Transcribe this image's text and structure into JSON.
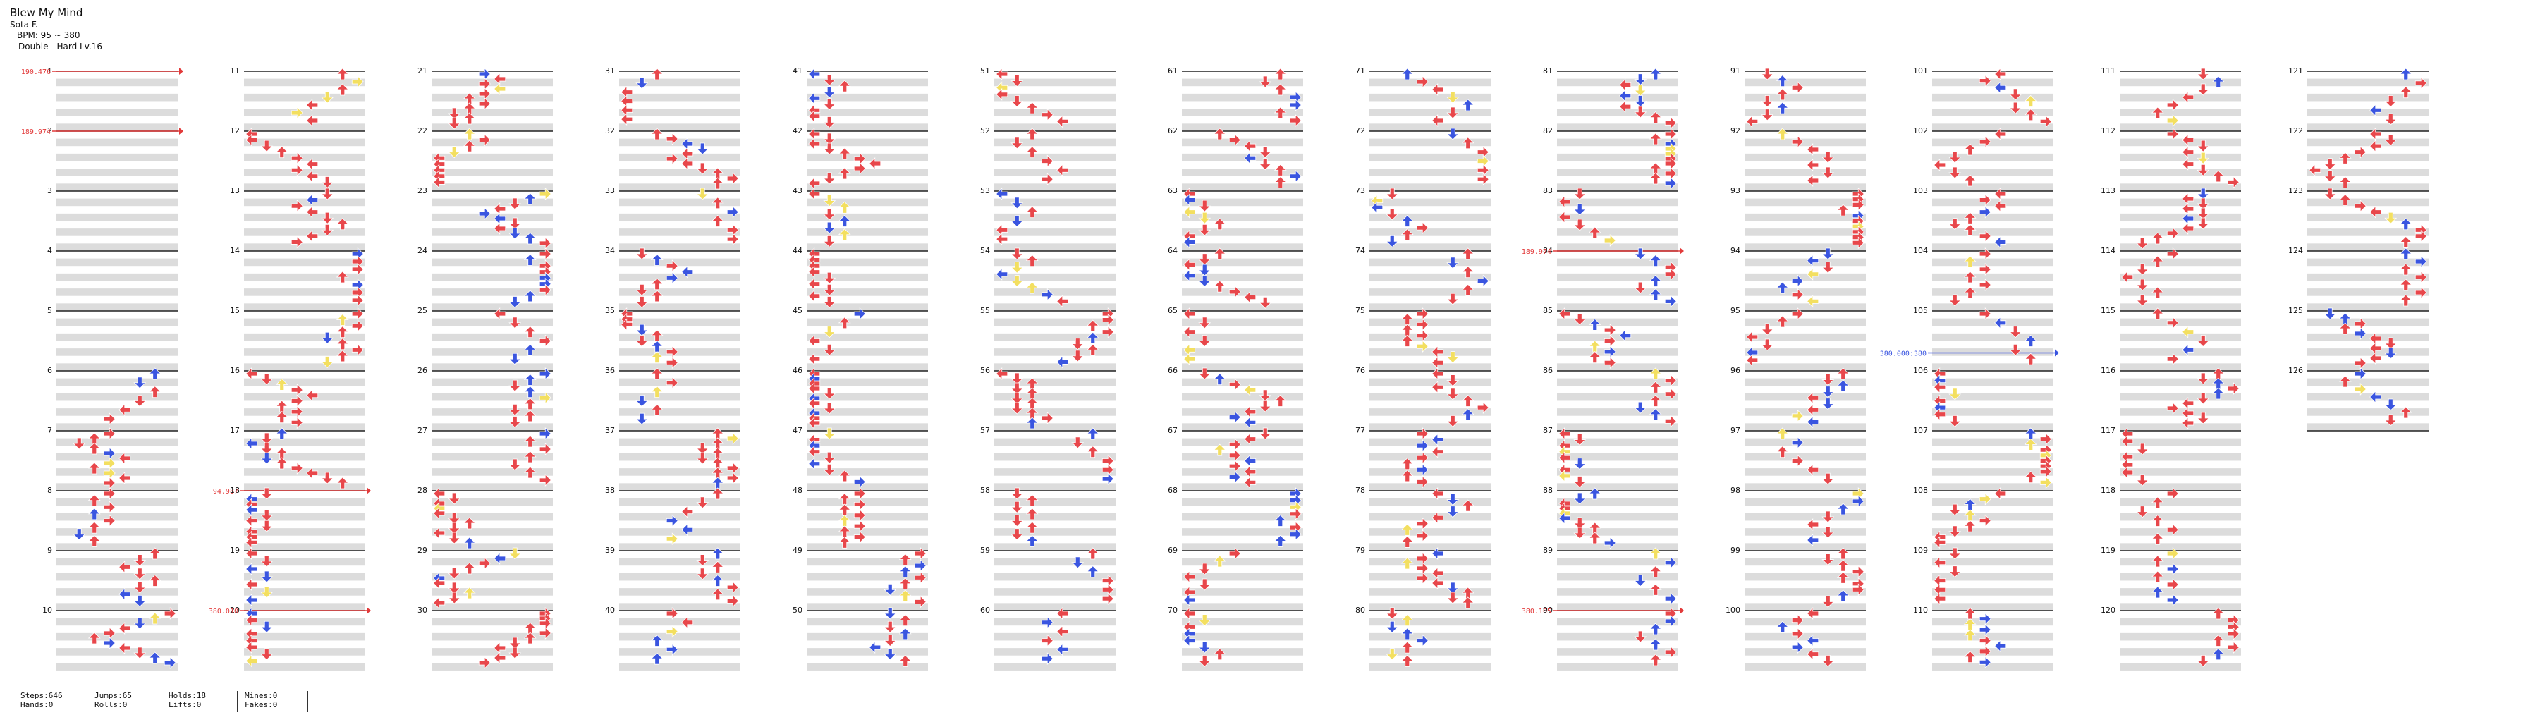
{
  "song": {
    "title": "Blew My Mind",
    "artist": "Sota F.",
    "bpm_text": "BPM: 95 ~ 380",
    "difficulty_text": "Double - Hard  Lv.16"
  },
  "measures": {
    "first": 1,
    "last": 126,
    "per_column": 10,
    "columns": 13
  },
  "bpm_changes": [
    {
      "measure": 1,
      "value": "190.476"
    },
    {
      "measure": 2,
      "value": "189.974"
    },
    {
      "measure": 18,
      "value": "94.987"
    },
    {
      "measure": 20,
      "value": "380.010"
    },
    {
      "measure": 84,
      "value": "189.974"
    },
    {
      "measure": 90,
      "value": "380.105"
    },
    {
      "measure": 105.7,
      "value": "380.000:380"
    }
  ],
  "colors": {
    "red_arrow": "#e8474b",
    "blue_arrow": "#3a55e0",
    "yellow_arrow": "#f3df60",
    "purple_arrow": "#b04be0",
    "hold_green": "#8ee08e",
    "stripe_gray": "#dcdcdc",
    "measure_line": "#222222",
    "bpm_red": "#e23a3a",
    "bpm_blue": "#3a55e0"
  },
  "stats": [
    {
      "line1": "Steps:646",
      "line2": "Hands:0"
    },
    {
      "line1": "Jumps:65",
      "line2": "Rolls:0"
    },
    {
      "line1": "Holds:18",
      "line2": "Lifts:0"
    },
    {
      "line1": "Mines:0",
      "line2": "Fakes:0"
    }
  ]
}
